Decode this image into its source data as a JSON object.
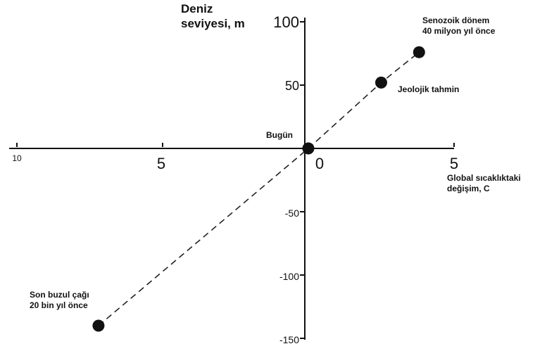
{
  "chart_data": {
    "type": "scatter",
    "ylabel_lines": [
      "Deniz",
      "seviyesi, m"
    ],
    "xlabel_lines": [
      "Global sıcaklıktaki",
      "değişim, C"
    ],
    "xlim": [
      -10,
      5
    ],
    "ylim": [
      -150,
      100
    ],
    "x_ticks": [
      {
        "value": -10,
        "label": "10"
      },
      {
        "value": -5,
        "label": "5"
      },
      {
        "value": 0,
        "label": "0"
      },
      {
        "value": 5,
        "label": "5"
      }
    ],
    "y_ticks": [
      {
        "value": 100,
        "label": "100"
      },
      {
        "value": 50,
        "label": "50"
      },
      {
        "value": -50,
        "label": "-50"
      },
      {
        "value": -100,
        "label": "-100"
      },
      {
        "value": -150,
        "label": "-150"
      }
    ],
    "points": [
      {
        "x": -7.2,
        "y": -140,
        "label_lines": [
          "Son buzul çağı",
          "20 bin yıl önce"
        ]
      },
      {
        "x": 0,
        "y": 0,
        "label_lines": [
          "Bugün"
        ]
      },
      {
        "x": 2.5,
        "y": 52,
        "label_lines": [
          "Jeolojik tahmin"
        ]
      },
      {
        "x": 3.8,
        "y": 76,
        "label_lines": [
          "Senozoik dönem",
          "40 milyon yıl önce"
        ]
      }
    ],
    "line_style": "dashed",
    "grid": false,
    "colors": {
      "axis": "#111111",
      "marker": "#111111",
      "line": "#222222"
    }
  }
}
